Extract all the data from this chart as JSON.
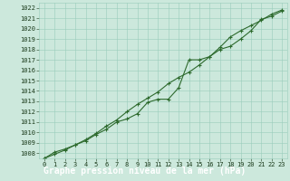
{
  "x": [
    0,
    1,
    2,
    3,
    4,
    5,
    6,
    7,
    8,
    9,
    10,
    11,
    12,
    13,
    14,
    15,
    16,
    17,
    18,
    19,
    20,
    21,
    22,
    23
  ],
  "line1": [
    1007.5,
    1008.1,
    1008.4,
    1008.8,
    1009.2,
    1009.8,
    1010.3,
    1011.0,
    1011.3,
    1011.8,
    1012.9,
    1013.2,
    1013.2,
    1014.3,
    1017.0,
    1017.0,
    1017.3,
    1018.0,
    1018.3,
    1019.0,
    1019.8,
    1020.9,
    1021.2,
    1021.7
  ],
  "line2": [
    1007.5,
    1007.9,
    1008.3,
    1008.8,
    1009.3,
    1009.9,
    1010.6,
    1011.2,
    1012.0,
    1012.7,
    1013.3,
    1013.9,
    1014.7,
    1015.3,
    1015.8,
    1016.5,
    1017.3,
    1018.2,
    1019.2,
    1019.8,
    1020.3,
    1020.8,
    1021.4,
    1021.8
  ],
  "ylim_min": 1007.5,
  "ylim_max": 1022.5,
  "xlim_min": -0.5,
  "xlim_max": 23.5,
  "yticks": [
    1008,
    1009,
    1010,
    1011,
    1012,
    1013,
    1014,
    1015,
    1016,
    1017,
    1018,
    1019,
    1020,
    1021,
    1022
  ],
  "xticks": [
    0,
    1,
    2,
    3,
    4,
    5,
    6,
    7,
    8,
    9,
    10,
    11,
    12,
    13,
    14,
    15,
    16,
    17,
    18,
    19,
    20,
    21,
    22,
    23
  ],
  "line_color": "#2d6a2d",
  "bg_color": "#cce8dc",
  "grid_color": "#99ccbb",
  "xlabel": "Graphe pression niveau de la mer (hPa)",
  "marker": "+",
  "linewidth": 0.8,
  "markersize": 3.5,
  "markeredgewidth": 0.8,
  "xlabel_fontsize": 7,
  "tick_fontsize": 5,
  "tick_color": "#1a3a1a",
  "bottom_label_bg": "#2d6a2d",
  "bottom_bar_height": 0.115
}
